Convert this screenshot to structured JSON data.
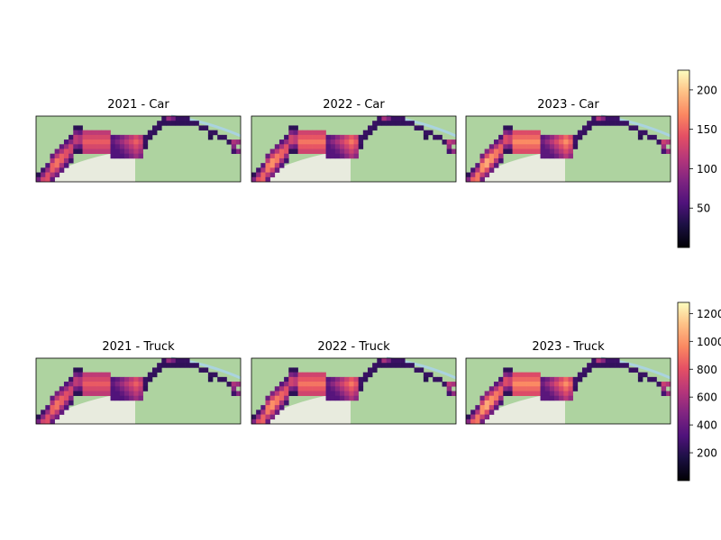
{
  "chart_data": {
    "type": "heatmap",
    "grid": {
      "rows": 2,
      "cols": 3
    },
    "panels": [
      {
        "title": "2021 - Car",
        "group": "car",
        "year": "2021"
      },
      {
        "title": "2022 - Car",
        "group": "car",
        "year": "2022"
      },
      {
        "title": "2023 - Car",
        "group": "car",
        "year": "2023"
      },
      {
        "title": "2021 - Truck",
        "group": "truck",
        "year": "2021"
      },
      {
        "title": "2022 - Truck",
        "group": "truck",
        "year": "2022"
      },
      {
        "title": "2023 - Truck",
        "group": "truck",
        "year": "2023"
      }
    ],
    "colorbars": {
      "car": {
        "vmin": 0,
        "vmax": 225,
        "ticks": [
          50,
          100,
          150,
          200
        ],
        "tick_labels": [
          "50",
          "100",
          "150",
          "200"
        ]
      },
      "truck": {
        "vmin": 0,
        "vmax": 1280,
        "ticks": [
          200,
          400,
          600,
          800,
          1000,
          1200
        ],
        "tick_labels": [
          "200",
          "400",
          "600",
          "800",
          "1000",
          "1200"
        ]
      }
    },
    "colormap": "magma",
    "basemap_colors": {
      "land": "#aed3a0",
      "background": "#f2efe9",
      "water": "#aad3df"
    }
  }
}
